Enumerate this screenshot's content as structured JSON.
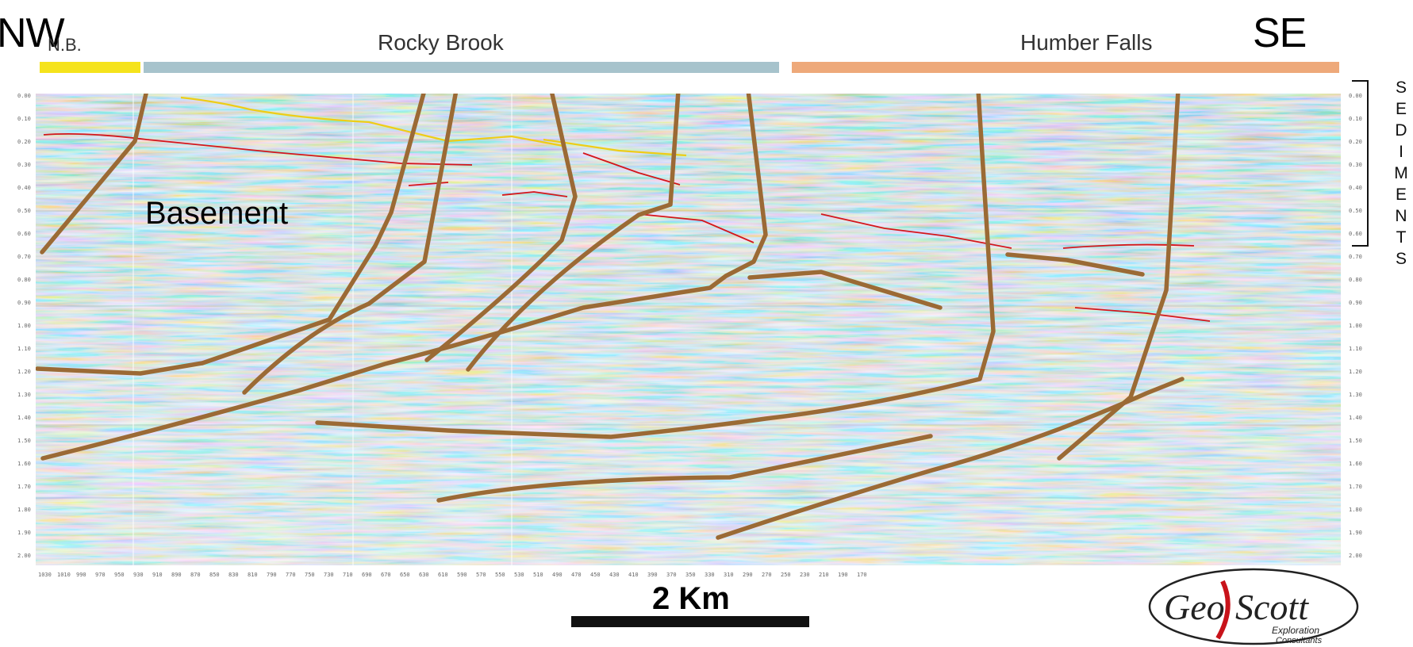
{
  "header": {
    "direction_left": "NW",
    "direction_right": "SE",
    "nb_label": "N.B.",
    "rocky_label": "Rocky Brook",
    "humber_label": "Humber Falls",
    "colors": {
      "nb": "#f5e31c",
      "rocky": "#a7c3cc",
      "humber": "#eea97a"
    }
  },
  "section": {
    "basement_label": "Basement",
    "sediments_letters": [
      "S",
      "E",
      "D",
      "I",
      "M",
      "E",
      "N",
      "T",
      "S"
    ],
    "time_ticks": [
      "0.00",
      "0.10",
      "0.20",
      "0.30",
      "0.40",
      "0.50",
      "0.60",
      "0.70",
      "0.80",
      "0.90",
      "1.00",
      "1.10",
      "1.20",
      "1.30",
      "1.40",
      "1.50",
      "1.60",
      "1.70",
      "1.80",
      "1.90",
      "2.00"
    ],
    "cdp_ticks": [
      "1030",
      "1010",
      "990",
      "970",
      "950",
      "930",
      "910",
      "890",
      "870",
      "850",
      "830",
      "810",
      "790",
      "770",
      "750",
      "730",
      "710",
      "690",
      "670",
      "650",
      "630",
      "610",
      "590",
      "570",
      "550",
      "530",
      "510",
      "490",
      "470",
      "450",
      "430",
      "410",
      "390",
      "370",
      "350",
      "330",
      "310",
      "290",
      "270",
      "250",
      "230",
      "210",
      "190",
      "170"
    ],
    "colors": {
      "fault": "#9b6a35",
      "red_horizon": "#d4161b",
      "yellow_horizon": "#eecd17"
    }
  },
  "scale": {
    "label": "2 Km"
  },
  "logo": {
    "name_part1": "Geo",
    "name_part2": "Scott",
    "subtitle1": "Exploration",
    "subtitle2": "Consultants"
  }
}
